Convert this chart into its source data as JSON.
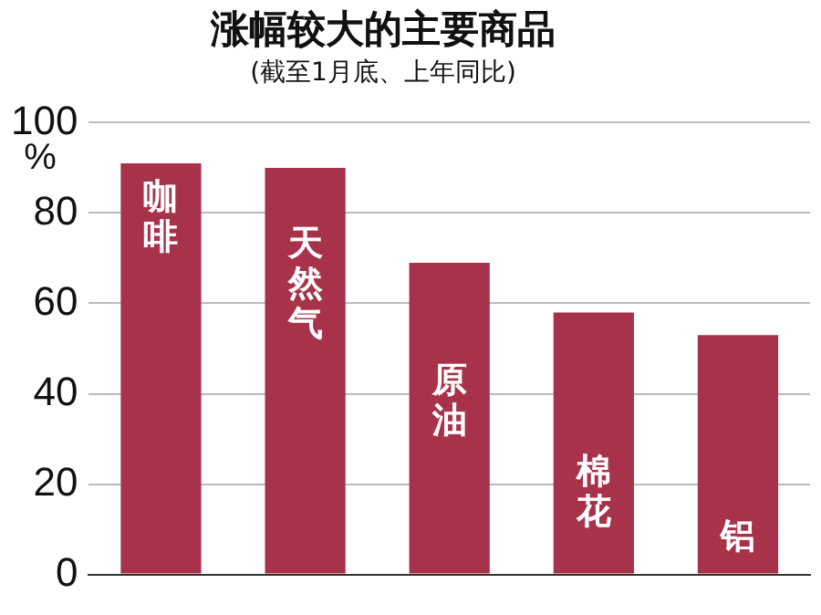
{
  "chart_data": {
    "type": "bar",
    "title": "涨幅较大的主要商品",
    "subtitle": "(截至1月底、上年同比)",
    "ylabel": "%",
    "categories": [
      "咖啡",
      "天然气",
      "原油",
      "棉花",
      "铝"
    ],
    "values": [
      91,
      90,
      69,
      58,
      53
    ],
    "color": "#a8324a",
    "ylim": [
      0,
      100
    ],
    "yticks": [
      0,
      20,
      40,
      60,
      80,
      100
    ],
    "grid": "y"
  }
}
